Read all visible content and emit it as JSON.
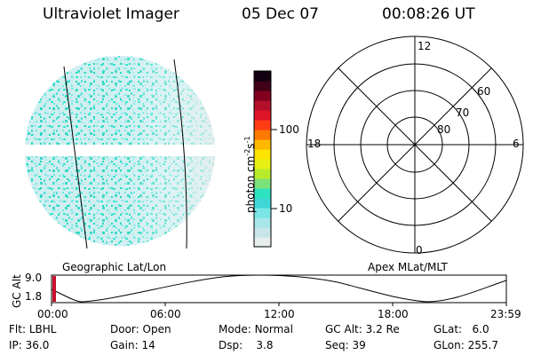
{
  "header": {
    "title": "Ultraviolet Imager",
    "date": "05 Dec 07",
    "time": "00:08:26 UT"
  },
  "colorbar": {
    "unit_prefix": "photon cm",
    "unit_exp1": "-2",
    "unit_mid": "s",
    "unit_exp2": "-1",
    "ticks": [
      "100",
      "10"
    ],
    "colors": [
      "#e6eeee",
      "#c8e6ea",
      "#a8e6ea",
      "#7ae6e6",
      "#3ed6d6",
      "#2ee4c0",
      "#7ce27a",
      "#b8ec2a",
      "#e6f014",
      "#ffe400",
      "#ffb800",
      "#ff7800",
      "#ff3c14",
      "#e01428",
      "#b4102a",
      "#80001e",
      "#400018",
      "#120010"
    ]
  },
  "geo_panel": {
    "label": "Geographic Lat/Lon"
  },
  "polar_panel": {
    "label": "Apex  MLat/MLT",
    "mlt_labels": {
      "top": "12",
      "left": "18",
      "right": "6",
      "bottom": "0"
    },
    "lat_labels": [
      "60",
      "70",
      "80"
    ]
  },
  "altitude_plot": {
    "ylabel": "GC Alt",
    "yticks": [
      "9.0",
      "1.8"
    ],
    "xticks": [
      "00:00",
      "06:00",
      "12:00",
      "18:00",
      "23:59"
    ]
  },
  "info": {
    "row1": [
      {
        "key": "Flt:",
        "val": "LBHL"
      },
      {
        "key": "Door:",
        "val": "Open"
      },
      {
        "key": "Mode:",
        "val": "Normal"
      },
      {
        "key": "GC Alt:",
        "val": "3.2 Re"
      },
      {
        "key": "GLat:",
        "val": "6.0"
      }
    ],
    "row2": [
      {
        "key": "IP:",
        "val": "36.0"
      },
      {
        "key": "Gain:",
        "val": "14"
      },
      {
        "key": "Dsp:",
        "val": "3.8"
      },
      {
        "key": "Seq:",
        "val": "39"
      },
      {
        "key": "GLon:",
        "val": "255.7"
      }
    ]
  }
}
